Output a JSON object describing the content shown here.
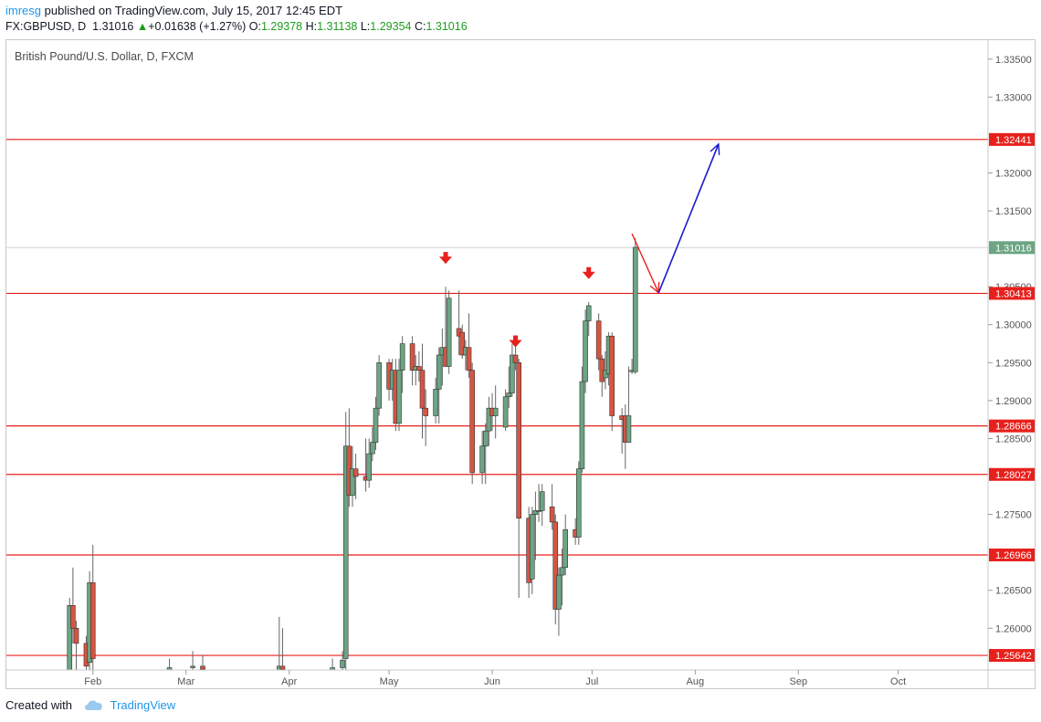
{
  "header": {
    "author": "imresg",
    "published_text": " published on TradingView.com, July 15, 2017 12:45 EDT",
    "symbol": "FX:GBPUSD, D",
    "last_price": "1.31016",
    "change": "+0.01638 (+1.27%)",
    "open_label": "O:",
    "open": "1.29378",
    "high_label": "H:",
    "high": "1.31138",
    "low_label": "L:",
    "low": "1.29354",
    "close_label": "C:",
    "close": "1.31016"
  },
  "footer": {
    "created_with": "Created with",
    "brand": "TradingView"
  },
  "colors": {
    "up": "#6ba583",
    "down": "#d75442",
    "level_line": "#e8201c",
    "projection": "#1a1ad0",
    "price_tag_last": "#6ba583",
    "arrow_marker": "#e8201c"
  },
  "chart_data": {
    "type": "candlestick",
    "title": "British Pound/U.S. Dollar, D, FXCM",
    "ylim": [
      1.2545,
      1.3375
    ],
    "y_ticks": [
      "1.26000",
      "1.26500",
      "1.27500",
      "1.28500",
      "1.29000",
      "1.29500",
      "1.30000",
      "1.30500",
      "1.31500",
      "1.32000",
      "1.33000",
      "1.33500"
    ],
    "x_ticks": [
      "Feb",
      "Mar",
      "Apr",
      "May",
      "Jun",
      "Jul",
      "Aug",
      "Sep",
      "Oct"
    ],
    "x_tick_dates": [
      "2017-02-01",
      "2017-03-01",
      "2017-04-01",
      "2017-05-01",
      "2017-06-01",
      "2017-07-01",
      "2017-08-01",
      "2017-09-01",
      "2017-10-01"
    ],
    "xlim": [
      "2017-01-06",
      "2017-10-28"
    ],
    "horizontal_levels": [
      "1.32441",
      "1.30413",
      "1.28666",
      "1.28027",
      "1.26966",
      "1.25642"
    ],
    "last_price_tag": "1.31016",
    "down_markers": [
      {
        "date": "2017-05-18",
        "price": 1.3085
      },
      {
        "date": "2017-06-08",
        "price": 1.2975
      },
      {
        "date": "2017-06-30",
        "price": 1.3065
      }
    ],
    "projection": [
      {
        "date": "2017-07-13",
        "price": 1.312
      },
      {
        "date": "2017-07-21",
        "price": 1.3042
      },
      {
        "date": "2017-08-08",
        "price": 1.3238
      }
    ],
    "candles": [
      {
        "d": "2017-01-25",
        "o": 1.2545,
        "h": 1.264,
        "l": 1.2545,
        "c": 1.263
      },
      {
        "d": "2017-01-26",
        "o": 1.263,
        "h": 1.268,
        "l": 1.258,
        "c": 1.26
      },
      {
        "d": "2017-01-27",
        "o": 1.26,
        "h": 1.261,
        "l": 1.2545,
        "c": 1.258
      },
      {
        "d": "2017-01-30",
        "o": 1.258,
        "h": 1.259,
        "l": 1.2545,
        "c": 1.255
      },
      {
        "d": "2017-01-31",
        "o": 1.2555,
        "h": 1.2675,
        "l": 1.2545,
        "c": 1.266
      },
      {
        "d": "2017-02-01",
        "o": 1.266,
        "h": 1.271,
        "l": 1.2545,
        "c": 1.256
      },
      {
        "d": "2017-02-24",
        "o": 1.2545,
        "h": 1.256,
        "l": 1.2545,
        "c": 1.2548
      },
      {
        "d": "2017-03-03",
        "o": 1.2548,
        "h": 1.257,
        "l": 1.2545,
        "c": 1.255
      },
      {
        "d": "2017-03-06",
        "o": 1.255,
        "h": 1.2565,
        "l": 1.2545,
        "c": 1.2546
      },
      {
        "d": "2017-03-29",
        "o": 1.2545,
        "h": 1.2615,
        "l": 1.2545,
        "c": 1.255
      },
      {
        "d": "2017-03-30",
        "o": 1.255,
        "h": 1.26,
        "l": 1.2545,
        "c": 1.2546
      },
      {
        "d": "2017-04-14",
        "o": 1.2545,
        "h": 1.256,
        "l": 1.2545,
        "c": 1.2548
      },
      {
        "d": "2017-04-17",
        "o": 1.2548,
        "h": 1.257,
        "l": 1.2545,
        "c": 1.2558
      },
      {
        "d": "2017-04-18",
        "o": 1.256,
        "h": 1.2885,
        "l": 1.2545,
        "c": 1.284
      },
      {
        "d": "2017-04-19",
        "o": 1.284,
        "h": 1.289,
        "l": 1.276,
        "c": 1.2775
      },
      {
        "d": "2017-04-20",
        "o": 1.2775,
        "h": 1.284,
        "l": 1.276,
        "c": 1.281
      },
      {
        "d": "2017-04-21",
        "o": 1.281,
        "h": 1.283,
        "l": 1.277,
        "c": 1.28
      },
      {
        "d": "2017-04-24",
        "o": 1.28,
        "h": 1.285,
        "l": 1.278,
        "c": 1.2795
      },
      {
        "d": "2017-04-25",
        "o": 1.2795,
        "h": 1.285,
        "l": 1.2785,
        "c": 1.283
      },
      {
        "d": "2017-04-26",
        "o": 1.283,
        "h": 1.2865,
        "l": 1.282,
        "c": 1.2845
      },
      {
        "d": "2017-04-27",
        "o": 1.2845,
        "h": 1.2905,
        "l": 1.2835,
        "c": 1.289
      },
      {
        "d": "2017-04-28",
        "o": 1.289,
        "h": 1.296,
        "l": 1.288,
        "c": 1.295
      },
      {
        "d": "2017-05-01",
        "o": 1.295,
        "h": 1.2955,
        "l": 1.29,
        "c": 1.2915
      },
      {
        "d": "2017-05-02",
        "o": 1.2915,
        "h": 1.2955,
        "l": 1.29,
        "c": 1.294
      },
      {
        "d": "2017-05-03",
        "o": 1.294,
        "h": 1.2955,
        "l": 1.286,
        "c": 1.287
      },
      {
        "d": "2017-05-04",
        "o": 1.287,
        "h": 1.2955,
        "l": 1.286,
        "c": 1.294
      },
      {
        "d": "2017-05-05",
        "o": 1.294,
        "h": 1.2985,
        "l": 1.291,
        "c": 1.2975
      },
      {
        "d": "2017-05-08",
        "o": 1.2975,
        "h": 1.2985,
        "l": 1.292,
        "c": 1.294
      },
      {
        "d": "2017-05-09",
        "o": 1.294,
        "h": 1.296,
        "l": 1.292,
        "c": 1.2945
      },
      {
        "d": "2017-05-10",
        "o": 1.2945,
        "h": 1.2965,
        "l": 1.2925,
        "c": 1.294
      },
      {
        "d": "2017-05-11",
        "o": 1.294,
        "h": 1.2975,
        "l": 1.285,
        "c": 1.289
      },
      {
        "d": "2017-05-12",
        "o": 1.289,
        "h": 1.2915,
        "l": 1.284,
        "c": 1.288
      },
      {
        "d": "2017-05-15",
        "o": 1.288,
        "h": 1.293,
        "l": 1.287,
        "c": 1.2915
      },
      {
        "d": "2017-05-16",
        "o": 1.2915,
        "h": 1.297,
        "l": 1.287,
        "c": 1.296
      },
      {
        "d": "2017-05-17",
        "o": 1.296,
        "h": 1.2995,
        "l": 1.292,
        "c": 1.297
      },
      {
        "d": "2017-05-18",
        "o": 1.297,
        "h": 1.305,
        "l": 1.2945,
        "c": 1.2945
      },
      {
        "d": "2017-05-19",
        "o": 1.2945,
        "h": 1.3045,
        "l": 1.2935,
        "c": 1.3035
      },
      {
        "d": "2017-05-22",
        "o": 1.2995,
        "h": 1.3045,
        "l": 1.296,
        "c": 1.2985
      },
      {
        "d": "2017-05-23",
        "o": 1.299,
        "h": 1.3,
        "l": 1.2955,
        "c": 1.296
      },
      {
        "d": "2017-05-24",
        "o": 1.296,
        "h": 1.298,
        "l": 1.294,
        "c": 1.297
      },
      {
        "d": "2017-05-25",
        "o": 1.297,
        "h": 1.3015,
        "l": 1.293,
        "c": 1.294
      },
      {
        "d": "2017-05-26",
        "o": 1.294,
        "h": 1.295,
        "l": 1.279,
        "c": 1.2805
      },
      {
        "d": "2017-05-29",
        "o": 1.2805,
        "h": 1.286,
        "l": 1.279,
        "c": 1.284
      },
      {
        "d": "2017-05-30",
        "o": 1.284,
        "h": 1.287,
        "l": 1.279,
        "c": 1.286
      },
      {
        "d": "2017-05-31",
        "o": 1.286,
        "h": 1.2905,
        "l": 1.284,
        "c": 1.289
      },
      {
        "d": "2017-06-01",
        "o": 1.289,
        "h": 1.291,
        "l": 1.286,
        "c": 1.288
      },
      {
        "d": "2017-06-02",
        "o": 1.288,
        "h": 1.292,
        "l": 1.285,
        "c": 1.289
      },
      {
        "d": "2017-06-05",
        "o": 1.2865,
        "h": 1.2915,
        "l": 1.286,
        "c": 1.2905
      },
      {
        "d": "2017-06-06",
        "o": 1.2905,
        "h": 1.2945,
        "l": 1.289,
        "c": 1.291
      },
      {
        "d": "2017-06-07",
        "o": 1.291,
        "h": 1.2975,
        "l": 1.2905,
        "c": 1.296
      },
      {
        "d": "2017-06-08",
        "o": 1.296,
        "h": 1.2975,
        "l": 1.294,
        "c": 1.295
      },
      {
        "d": "2017-06-09",
        "o": 1.295,
        "h": 1.2955,
        "l": 1.264,
        "c": 1.2745
      },
      {
        "d": "2017-06-12",
        "o": 1.2745,
        "h": 1.276,
        "l": 1.264,
        "c": 1.266
      },
      {
        "d": "2017-06-13",
        "o": 1.2665,
        "h": 1.276,
        "l": 1.2645,
        "c": 1.275
      },
      {
        "d": "2017-06-14",
        "o": 1.275,
        "h": 1.278,
        "l": 1.269,
        "c": 1.2755
      },
      {
        "d": "2017-06-15",
        "o": 1.2755,
        "h": 1.279,
        "l": 1.274,
        "c": 1.2755
      },
      {
        "d": "2017-06-16",
        "o": 1.2755,
        "h": 1.279,
        "l": 1.2735,
        "c": 1.278
      },
      {
        "d": "2017-06-19",
        "o": 1.276,
        "h": 1.279,
        "l": 1.273,
        "c": 1.274
      },
      {
        "d": "2017-06-20",
        "o": 1.274,
        "h": 1.275,
        "l": 1.2605,
        "c": 1.2625
      },
      {
        "d": "2017-06-21",
        "o": 1.2625,
        "h": 1.268,
        "l": 1.259,
        "c": 1.267
      },
      {
        "d": "2017-06-22",
        "o": 1.267,
        "h": 1.2705,
        "l": 1.263,
        "c": 1.268
      },
      {
        "d": "2017-06-23",
        "o": 1.268,
        "h": 1.275,
        "l": 1.267,
        "c": 1.273
      },
      {
        "d": "2017-06-26",
        "o": 1.273,
        "h": 1.2745,
        "l": 1.271,
        "c": 1.272
      },
      {
        "d": "2017-06-27",
        "o": 1.272,
        "h": 1.282,
        "l": 1.271,
        "c": 1.281
      },
      {
        "d": "2017-06-28",
        "o": 1.281,
        "h": 1.2945,
        "l": 1.2805,
        "c": 1.2925
      },
      {
        "d": "2017-06-29",
        "o": 1.2925,
        "h": 1.302,
        "l": 1.291,
        "c": 1.3005
      },
      {
        "d": "2017-06-30",
        "o": 1.3005,
        "h": 1.303,
        "l": 1.2985,
        "c": 1.3025
      },
      {
        "d": "2017-07-03",
        "o": 1.3005,
        "h": 1.3015,
        "l": 1.294,
        "c": 1.2955
      },
      {
        "d": "2017-07-04",
        "o": 1.2955,
        "h": 1.296,
        "l": 1.2905,
        "c": 1.2925
      },
      {
        "d": "2017-07-05",
        "o": 1.293,
        "h": 1.2965,
        "l": 1.2915,
        "c": 1.294
      },
      {
        "d": "2017-07-06",
        "o": 1.2935,
        "h": 1.299,
        "l": 1.292,
        "c": 1.2985
      },
      {
        "d": "2017-07-07",
        "o": 1.2985,
        "h": 1.299,
        "l": 1.286,
        "c": 1.288
      },
      {
        "d": "2017-07-10",
        "o": 1.288,
        "h": 1.289,
        "l": 1.283,
        "c": 1.2875
      },
      {
        "d": "2017-07-11",
        "o": 1.288,
        "h": 1.2895,
        "l": 1.281,
        "c": 1.2845
      },
      {
        "d": "2017-07-12",
        "o": 1.2845,
        "h": 1.2945,
        "l": 1.2845,
        "c": 1.288
      },
      {
        "d": "2017-07-13",
        "o": 1.2938,
        "h": 1.2955,
        "l": 1.2935,
        "c": 1.294
      },
      {
        "d": "2017-07-14",
        "o": 1.2938,
        "h": 1.3114,
        "l": 1.2935,
        "c": 1.3102
      }
    ]
  }
}
